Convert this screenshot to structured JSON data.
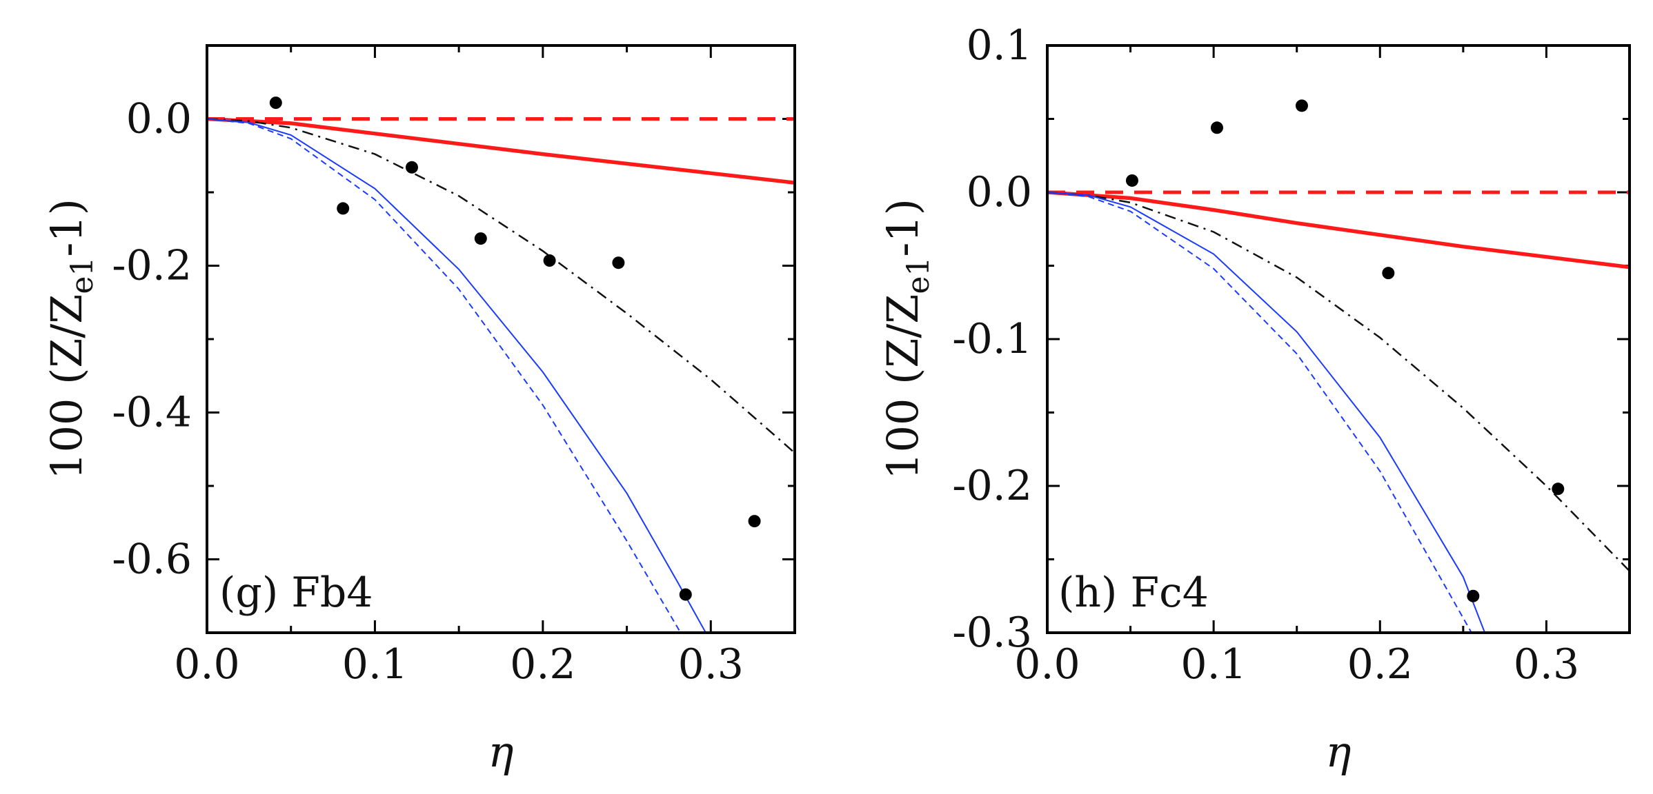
{
  "chart_data": [
    {
      "type": "line",
      "panel_label": "(g) Fb4",
      "xlabel": "η",
      "ylabel": "100 (Z/Z",
      "ylabel_sub": "e1",
      "ylabel_tail": "-1)",
      "xlim": [
        0.0,
        0.35
      ],
      "ylim": [
        -0.7,
        0.1
      ],
      "xticks": [
        0.0,
        0.1,
        0.2,
        0.3
      ],
      "xtick_labels": [
        "0.0",
        "0.1",
        "0.2",
        "0.3"
      ],
      "yticks": [
        0.0,
        -0.2,
        -0.4,
        -0.6
      ],
      "ytick_labels": [
        "0.0",
        "-0.2",
        "-0.4",
        "-0.6"
      ],
      "series": [
        {
          "name": "red-dashed",
          "style": "dashed",
          "color": "#ff1a1a",
          "x": [
            0.0,
            0.35
          ],
          "y": [
            0.0,
            0.0
          ]
        },
        {
          "name": "red-solid",
          "style": "solid",
          "color": "#ff1a1a",
          "x": [
            0.0,
            0.05,
            0.1,
            0.15,
            0.2,
            0.25,
            0.3,
            0.35
          ],
          "y": [
            0.0,
            -0.006,
            -0.02,
            -0.034,
            -0.048,
            -0.061,
            -0.074,
            -0.087
          ]
        },
        {
          "name": "black-dashdot",
          "style": "dashdot",
          "color": "#111111",
          "x": [
            0.0,
            0.025,
            0.05,
            0.1,
            0.15,
            0.2,
            0.25,
            0.3,
            0.35
          ],
          "y": [
            0.0,
            -0.003,
            -0.012,
            -0.048,
            -0.105,
            -0.18,
            -0.265,
            -0.355,
            -0.455
          ]
        },
        {
          "name": "blue-solid",
          "style": "solid",
          "color": "#1a3aff",
          "x": [
            0.0,
            0.025,
            0.05,
            0.1,
            0.15,
            0.2,
            0.25,
            0.28,
            0.297
          ],
          "y": [
            0.0,
            -0.005,
            -0.022,
            -0.095,
            -0.205,
            -0.345,
            -0.51,
            -0.63,
            -0.7
          ]
        },
        {
          "name": "blue-dashed",
          "style": "dashed",
          "color": "#1a3aff",
          "x": [
            0.0,
            0.025,
            0.05,
            0.1,
            0.15,
            0.2,
            0.25,
            0.282
          ],
          "y": [
            0.0,
            -0.006,
            -0.027,
            -0.11,
            -0.232,
            -0.39,
            -0.575,
            -0.7
          ]
        },
        {
          "name": "data-points",
          "style": "markers",
          "color": "#000000",
          "x": [
            0.041,
            0.081,
            0.122,
            0.163,
            0.204,
            0.245,
            0.285,
            0.326
          ],
          "y": [
            0.022,
            -0.122,
            -0.066,
            -0.163,
            -0.193,
            -0.196,
            -0.648,
            -0.548
          ]
        }
      ]
    },
    {
      "type": "line",
      "panel_label": "(h) Fc4",
      "xlabel": "η",
      "ylabel": "100 (Z/Z",
      "ylabel_sub": "e1",
      "ylabel_tail": "-1)",
      "xlim": [
        0.0,
        0.35
      ],
      "ylim": [
        -0.3,
        0.1
      ],
      "xticks": [
        0.0,
        0.1,
        0.2,
        0.3
      ],
      "xtick_labels": [
        "0.0",
        "0.1",
        "0.2",
        "0.3"
      ],
      "yticks": [
        0.1,
        0.0,
        -0.1,
        -0.2,
        -0.3
      ],
      "ytick_labels": [
        "0.1",
        "0.0",
        "-0.1",
        "-0.2",
        "-0.3"
      ],
      "series": [
        {
          "name": "red-dashed",
          "style": "dashed",
          "color": "#ff1a1a",
          "x": [
            0.0,
            0.35
          ],
          "y": [
            0.0,
            0.0
          ]
        },
        {
          "name": "red-solid",
          "style": "solid",
          "color": "#ff1a1a",
          "x": [
            0.0,
            0.05,
            0.1,
            0.15,
            0.2,
            0.25,
            0.3,
            0.35
          ],
          "y": [
            0.0,
            -0.004,
            -0.012,
            -0.021,
            -0.029,
            -0.037,
            -0.044,
            -0.051
          ]
        },
        {
          "name": "black-dashdot",
          "style": "dashdot",
          "color": "#111111",
          "x": [
            0.0,
            0.025,
            0.05,
            0.1,
            0.15,
            0.2,
            0.25,
            0.3,
            0.35
          ],
          "y": [
            0.0,
            -0.002,
            -0.007,
            -0.027,
            -0.058,
            -0.099,
            -0.147,
            -0.2,
            -0.258
          ]
        },
        {
          "name": "blue-solid",
          "style": "solid",
          "color": "#1a3aff",
          "x": [
            0.0,
            0.025,
            0.05,
            0.1,
            0.15,
            0.2,
            0.25,
            0.263
          ],
          "y": [
            0.0,
            -0.002,
            -0.01,
            -0.042,
            -0.095,
            -0.167,
            -0.262,
            -0.3
          ]
        },
        {
          "name": "blue-dashed",
          "style": "dashed",
          "color": "#1a3aff",
          "x": [
            0.0,
            0.025,
            0.05,
            0.1,
            0.15,
            0.2,
            0.25,
            0.255
          ],
          "y": [
            0.0,
            -0.003,
            -0.013,
            -0.052,
            -0.11,
            -0.19,
            -0.29,
            -0.3
          ]
        },
        {
          "name": "data-points",
          "style": "markers",
          "color": "#000000",
          "x": [
            0.051,
            0.102,
            0.153,
            0.205,
            0.256,
            0.307
          ],
          "y": [
            0.008,
            0.044,
            0.059,
            -0.055,
            -0.275,
            -0.202
          ]
        }
      ]
    }
  ]
}
